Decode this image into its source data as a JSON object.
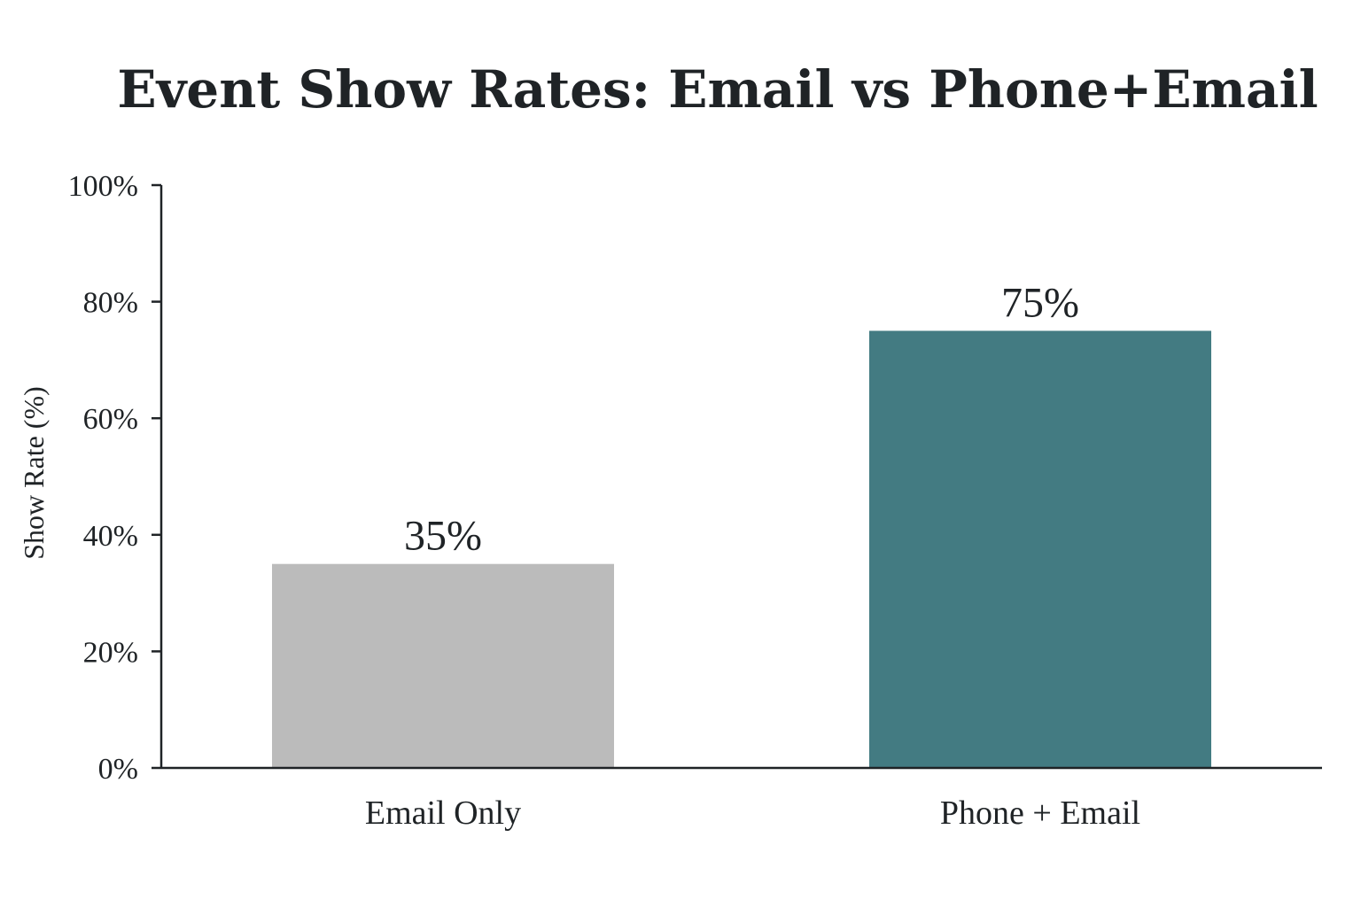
{
  "chart_data": {
    "type": "bar",
    "title": "Event Show Rates: Email vs Phone+Email",
    "ylabel": "Show Rate (%)",
    "xlabel": "",
    "categories": [
      "Email Only",
      "Phone + Email"
    ],
    "values": [
      35,
      75
    ],
    "data_labels": [
      "35%",
      "75%"
    ],
    "bar_colors": [
      "#bbbbbb",
      "#437b82"
    ],
    "ylim": [
      0,
      100
    ],
    "yticks": [
      0,
      20,
      40,
      60,
      80,
      100
    ],
    "ytick_labels": [
      "0%",
      "20%",
      "40%",
      "60%",
      "80%",
      "100%"
    ],
    "grid": false,
    "legend": "none"
  },
  "colors": {
    "text": "#1f2326",
    "axis": "#1f2326",
    "background": "#ffffff"
  }
}
